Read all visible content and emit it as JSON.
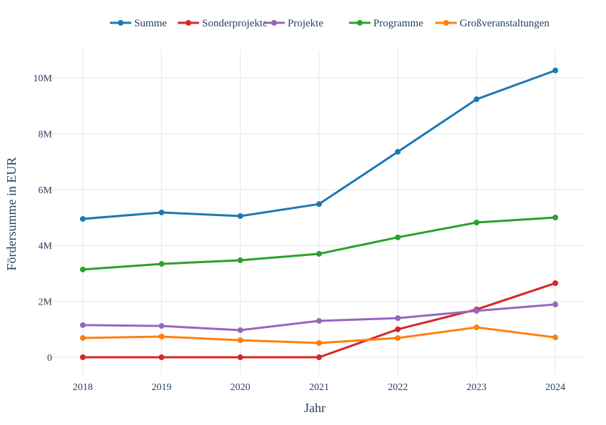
{
  "chart_data": {
    "type": "line",
    "title": "",
    "xlabel": "Jahr",
    "ylabel": "Fördersumme in EUR",
    "x": [
      2018,
      2019,
      2020,
      2021,
      2022,
      2023,
      2024
    ],
    "x_tick_labels": [
      "2018",
      "2019",
      "2020",
      "2021",
      "2022",
      "2023",
      "2024"
    ],
    "y_tick_values": [
      0,
      2000000,
      4000000,
      6000000,
      8000000,
      10000000
    ],
    "y_tick_labels": [
      "0",
      "2M",
      "4M",
      "6M",
      "8M",
      "10M"
    ],
    "ylim": [
      -600000,
      11000000
    ],
    "grid": true,
    "legend_placement": "top-center horizontal",
    "series": [
      {
        "name": "Summe",
        "color": "#1f77b4",
        "values": [
          4950000,
          5180000,
          5050000,
          5480000,
          7350000,
          9230000,
          10260000
        ]
      },
      {
        "name": "Sonderprojekte",
        "color": "#d62728",
        "values": [
          0,
          0,
          0,
          0,
          1000000,
          1710000,
          2650000
        ]
      },
      {
        "name": "Projekte",
        "color": "#9467bd",
        "values": [
          1150000,
          1120000,
          970000,
          1300000,
          1400000,
          1660000,
          1890000
        ]
      },
      {
        "name": "Programme",
        "color": "#2ca02c",
        "values": [
          3140000,
          3340000,
          3470000,
          3700000,
          4290000,
          4820000,
          5000000
        ]
      },
      {
        "name": "Großveranstaltungen",
        "color": "#ff7f0e",
        "values": [
          690000,
          740000,
          610000,
          510000,
          690000,
          1070000,
          710000
        ]
      }
    ]
  }
}
